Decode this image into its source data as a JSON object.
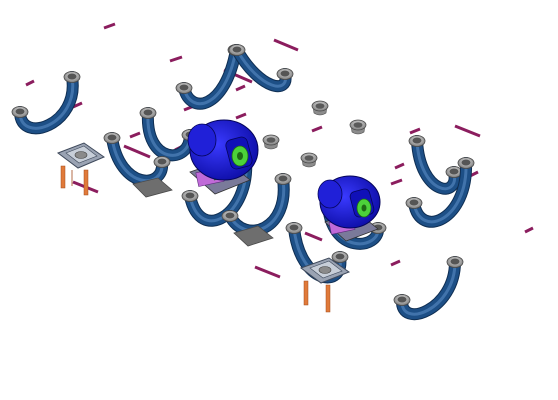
{
  "viewport": {
    "background": "#ffffff"
  },
  "scene": {
    "pipe_color": "#1d4f86",
    "pipe_highlight": "#5a8cc4",
    "flange_color": "#b8b8b8",
    "flange_dark": "#6f6f6f",
    "marker_color": "#8b1d5e",
    "pump_color": "#1a1ae8",
    "pump_dark": "#0a0a9a",
    "motor_green": "#4cd13a",
    "plate_color": "#707070",
    "bracket_color": "#e07a3a",
    "support_plate": "#9aa3b3"
  }
}
